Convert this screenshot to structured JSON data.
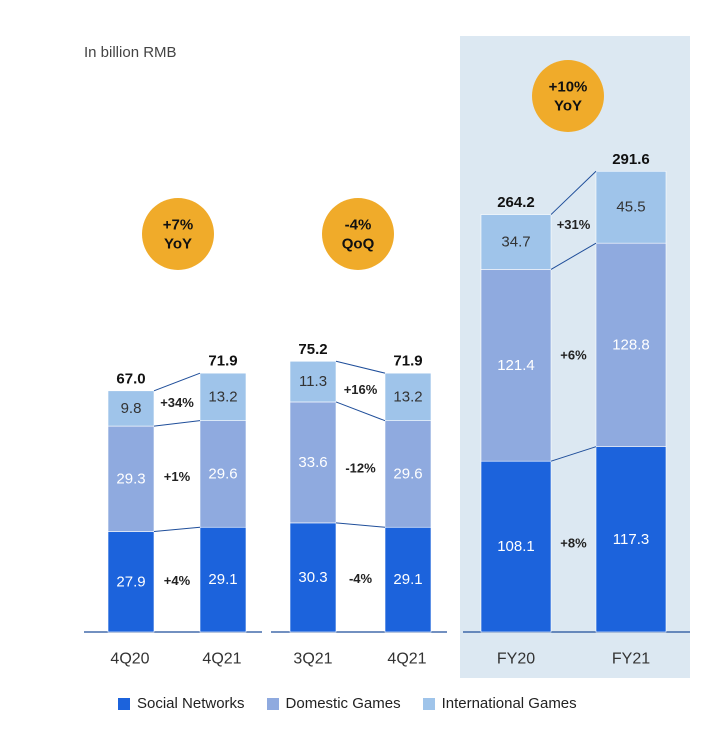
{
  "unit_label": "In billion RMB",
  "colors": {
    "social": "#1c63dc",
    "domestic": "#8faadf",
    "international": "#9fc4ea",
    "badge": "#f0ab2a",
    "highlight": "#dce8f2"
  },
  "legend": [
    {
      "key": "social",
      "label": "Social Networks"
    },
    {
      "key": "domestic",
      "label": "Domestic Games"
    },
    {
      "key": "international",
      "label": "International Games"
    }
  ],
  "chart_data": {
    "type": "bar",
    "stacked": true,
    "title": "",
    "unit": "In billion RMB",
    "series_names": [
      "Social Networks",
      "Domestic Games",
      "International Games"
    ],
    "groups": [
      {
        "badge": [
          "+7%",
          "YoY"
        ],
        "bars": [
          {
            "label": "4Q20",
            "total": "67.0",
            "values": [
              27.9,
              29.3,
              9.8
            ]
          },
          {
            "label": "4Q21",
            "total": "71.9",
            "values": [
              29.1,
              29.6,
              13.2
            ]
          }
        ],
        "changes": [
          "+4%",
          "+1%",
          "+34%"
        ]
      },
      {
        "badge": [
          "-4%",
          "QoQ"
        ],
        "bars": [
          {
            "label": "3Q21",
            "total": "75.2",
            "values": [
              30.3,
              33.6,
              11.3
            ]
          },
          {
            "label": "4Q21",
            "total": "71.9",
            "values": [
              29.1,
              29.6,
              13.2
            ]
          }
        ],
        "changes": [
          "-4%",
          "-12%",
          "+16%"
        ]
      },
      {
        "badge": [
          "+10%",
          "YoY"
        ],
        "bars": [
          {
            "label": "FY20",
            "total": "264.2",
            "values": [
              108.1,
              121.4,
              34.7
            ]
          },
          {
            "label": "FY21",
            "total": "291.6",
            "values": [
              117.3,
              128.8,
              45.5
            ]
          }
        ],
        "changes": [
          "+8%",
          "+6%",
          "+31%"
        ]
      }
    ]
  }
}
